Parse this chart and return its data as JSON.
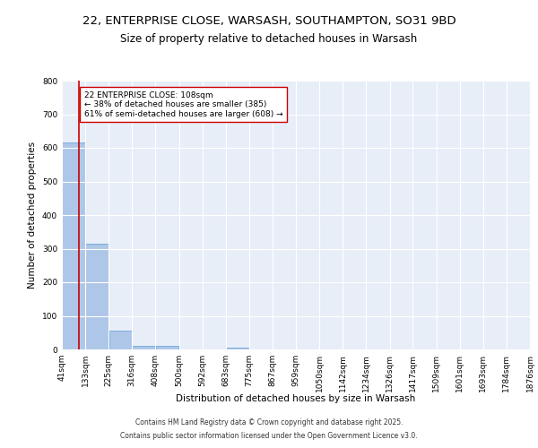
{
  "title_line1": "22, ENTERPRISE CLOSE, WARSASH, SOUTHAMPTON, SO31 9BD",
  "title_line2": "Size of property relative to detached houses in Warsash",
  "xlabel": "Distribution of detached houses by size in Warsash",
  "ylabel": "Number of detached properties",
  "bin_edges": [
    41,
    133,
    225,
    316,
    408,
    500,
    592,
    683,
    775,
    867,
    959,
    1050,
    1142,
    1234,
    1326,
    1417,
    1509,
    1601,
    1693,
    1784,
    1876
  ],
  "bar_heights": [
    615,
    315,
    55,
    12,
    12,
    0,
    0,
    5,
    0,
    0,
    0,
    0,
    0,
    0,
    0,
    0,
    0,
    0,
    0,
    0
  ],
  "bar_color": "#aec6e8",
  "bar_edge_color": "#5a9fd4",
  "background_color": "#e8eef8",
  "grid_color": "#ffffff",
  "property_size": 108,
  "property_line_color": "#cc0000",
  "annotation_text": "22 ENTERPRISE CLOSE: 108sqm\n← 38% of detached houses are smaller (385)\n61% of semi-detached houses are larger (608) →",
  "annotation_box_color": "#ffffff",
  "annotation_box_edge_color": "#cc0000",
  "ylim": [
    0,
    800
  ],
  "yticks": [
    0,
    100,
    200,
    300,
    400,
    500,
    600,
    700,
    800
  ],
  "footer_line1": "Contains HM Land Registry data © Crown copyright and database right 2025.",
  "footer_line2": "Contains public sector information licensed under the Open Government Licence v3.0.",
  "title_fontsize": 9.5,
  "subtitle_fontsize": 8.5,
  "label_fontsize": 7.5,
  "tick_fontsize": 6.5,
  "annotation_fontsize": 6.5,
  "footer_fontsize": 5.5
}
